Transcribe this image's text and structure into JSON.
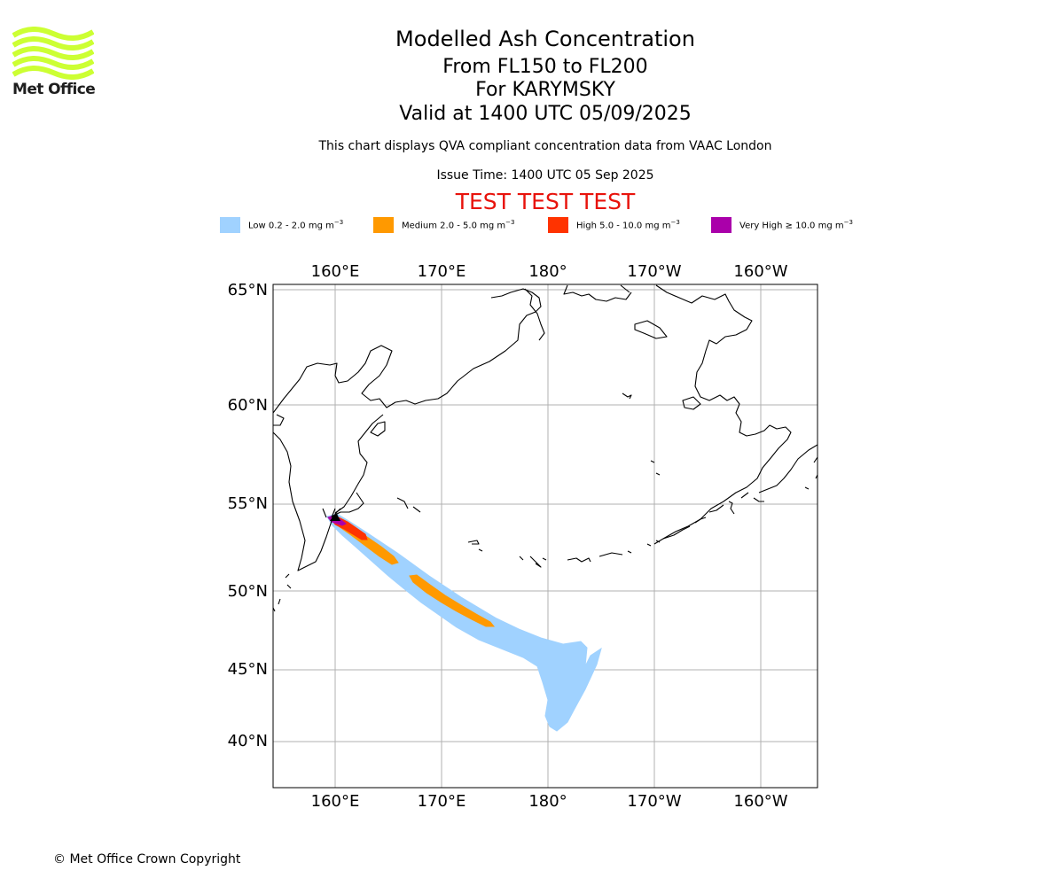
{
  "logo": {
    "text": "Met Office",
    "wave_color": "#ccff33"
  },
  "header": {
    "title": "Modelled Ash Concentration",
    "levels": "From FL150 to FL200",
    "volcano": "For KARYMSKY",
    "valid": "Valid at 1400 UTC 05/09/2025",
    "note": "This chart displays QVA compliant concentration data from VAAC London",
    "issue_time": "Issue Time: 1400 UTC 05 Sep 2025",
    "test_banner": "TEST TEST TEST"
  },
  "legend": [
    {
      "label": "Low 0.2 - 2.0 mg m",
      "exp": "−3",
      "color": "#a0d2ff"
    },
    {
      "label": "Medium 2.0 - 5.0 mg m",
      "exp": "−3",
      "color": "#ff9900"
    },
    {
      "label": "High 5.0 - 10.0 mg m",
      "exp": "−3",
      "color": "#ff3300"
    },
    {
      "label": "Very High  ≥  10.0 mg m",
      "exp": "−3",
      "color": "#aa00aa"
    }
  ],
  "map": {
    "lon_labels": [
      "160°E",
      "170°E",
      "180°",
      "170°W",
      "160°W"
    ],
    "lat_labels": [
      "65°N",
      "60°N",
      "55°N",
      "50°N",
      "45°N",
      "40°N"
    ],
    "gridlines": true
  },
  "footer": {
    "copyright": "© Met Office Crown Copyright"
  }
}
